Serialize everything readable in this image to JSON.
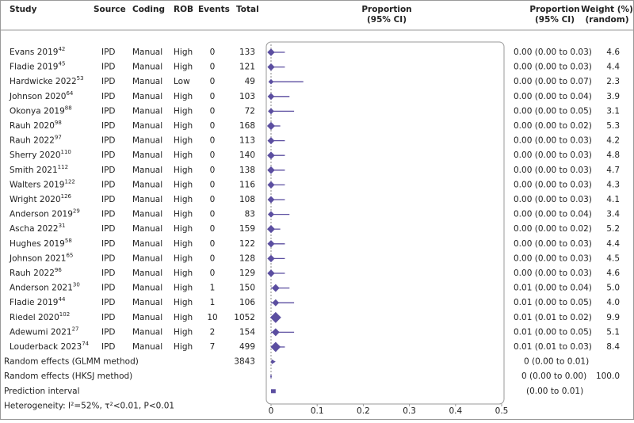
{
  "chart_data": {
    "type": "forest",
    "headers": {
      "study": "Study",
      "source": "Source",
      "coding": "Coding",
      "rob": "ROB",
      "events": "Events",
      "total": "Total",
      "plot": [
        "Proportion",
        "(95% CI)"
      ],
      "ci": [
        "Proportion",
        "(95% CI)"
      ],
      "weight": [
        "Weight (%)",
        "(random)"
      ]
    },
    "color": "#5b4ea0",
    "xlim": [
      0,
      0.5
    ],
    "xticks": [
      0,
      0.1,
      0.2,
      0.3,
      0.4,
      0.5
    ],
    "rows": [
      {
        "name": "Evans 2019",
        "ref": "42",
        "source": "IPD",
        "coding": "Manual",
        "rob": "High",
        "events": 0,
        "total": 133,
        "estimate": 0,
        "lower": 0,
        "upper": 0.03,
        "ci_label": "0.00 (0.00 to 0.03)",
        "weight": {
          "value": 4.6,
          "label": "4.6"
        }
      },
      {
        "name": "Fladie 2019",
        "ref": "45",
        "source": "IPD",
        "coding": "Manual",
        "rob": "High",
        "events": 0,
        "total": 121,
        "estimate": 0,
        "lower": 0,
        "upper": 0.03,
        "ci_label": "0.00 (0.00 to 0.03)",
        "weight": {
          "value": 4.4,
          "label": "4.4"
        }
      },
      {
        "name": "Hardwicke 2022",
        "ref": "53",
        "source": "IPD",
        "coding": "Manual",
        "rob": "Low",
        "events": 0,
        "total": 49,
        "estimate": 0,
        "lower": 0,
        "upper": 0.07,
        "ci_label": "0.00 (0.00 to 0.07)",
        "weight": {
          "value": 2.3,
          "label": "2.3"
        }
      },
      {
        "name": "Johnson 2020",
        "ref": "64",
        "source": "IPD",
        "coding": "Manual",
        "rob": "High",
        "events": 0,
        "total": 103,
        "estimate": 0,
        "lower": 0,
        "upper": 0.04,
        "ci_label": "0.00 (0.00 to 0.04)",
        "weight": {
          "value": 3.9,
          "label": "3.9"
        }
      },
      {
        "name": "Okonya 2019",
        "ref": "88",
        "source": "IPD",
        "coding": "Manual",
        "rob": "High",
        "events": 0,
        "total": 72,
        "estimate": 0,
        "lower": 0,
        "upper": 0.05,
        "ci_label": "0.00 (0.00 to 0.05)",
        "weight": {
          "value": 3.1,
          "label": "3.1"
        }
      },
      {
        "name": "Rauh 2020",
        "ref": "98",
        "source": "IPD",
        "coding": "Manual",
        "rob": "High",
        "events": 0,
        "total": 168,
        "estimate": 0,
        "lower": 0,
        "upper": 0.02,
        "ci_label": "0.00 (0.00 to 0.02)",
        "weight": {
          "value": 5.3,
          "label": "5.3"
        }
      },
      {
        "name": "Rauh 2022",
        "ref": "97",
        "source": "IPD",
        "coding": "Manual",
        "rob": "High",
        "events": 0,
        "total": 113,
        "estimate": 0,
        "lower": 0,
        "upper": 0.03,
        "ci_label": "0.00 (0.00 to 0.03)",
        "weight": {
          "value": 4.2,
          "label": "4.2"
        }
      },
      {
        "name": "Sherry 2020",
        "ref": "110",
        "source": "IPD",
        "coding": "Manual",
        "rob": "High",
        "events": 0,
        "total": 140,
        "estimate": 0,
        "lower": 0,
        "upper": 0.03,
        "ci_label": "0.00 (0.00 to 0.03)",
        "weight": {
          "value": 4.8,
          "label": "4.8"
        }
      },
      {
        "name": "Smith 2021",
        "ref": "112",
        "source": "IPD",
        "coding": "Manual",
        "rob": "High",
        "events": 0,
        "total": 138,
        "estimate": 0,
        "lower": 0,
        "upper": 0.03,
        "ci_label": "0.00 (0.00 to 0.03)",
        "weight": {
          "value": 4.7,
          "label": "4.7"
        }
      },
      {
        "name": "Walters 2019",
        "ref": "122",
        "source": "IPD",
        "coding": "Manual",
        "rob": "High",
        "events": 0,
        "total": 116,
        "estimate": 0,
        "lower": 0,
        "upper": 0.03,
        "ci_label": "0.00 (0.00 to 0.03)",
        "weight": {
          "value": 4.3,
          "label": "4.3"
        }
      },
      {
        "name": "Wright 2020",
        "ref": "126",
        "source": "IPD",
        "coding": "Manual",
        "rob": "High",
        "events": 0,
        "total": 108,
        "estimate": 0,
        "lower": 0,
        "upper": 0.03,
        "ci_label": "0.00 (0.00 to 0.03)",
        "weight": {
          "value": 4.1,
          "label": "4.1"
        }
      },
      {
        "name": "Anderson 2019",
        "ref": "29",
        "source": "IPD",
        "coding": "Manual",
        "rob": "High",
        "events": 0,
        "total": 83,
        "estimate": 0,
        "lower": 0,
        "upper": 0.04,
        "ci_label": "0.00 (0.00 to 0.04)",
        "weight": {
          "value": 3.4,
          "label": "3.4"
        }
      },
      {
        "name": "Ascha 2022",
        "ref": "31",
        "source": "IPD",
        "coding": "Manual",
        "rob": "High",
        "events": 0,
        "total": 159,
        "estimate": 0,
        "lower": 0,
        "upper": 0.02,
        "ci_label": "0.00 (0.00 to 0.02)",
        "weight": {
          "value": 5.2,
          "label": "5.2"
        }
      },
      {
        "name": "Hughes 2019",
        "ref": "58",
        "source": "IPD",
        "coding": "Manual",
        "rob": "High",
        "events": 0,
        "total": 122,
        "estimate": 0,
        "lower": 0,
        "upper": 0.03,
        "ci_label": "0.00 (0.00 to 0.03)",
        "weight": {
          "value": 4.4,
          "label": "4.4"
        }
      },
      {
        "name": "Johnson 2021",
        "ref": "65",
        "source": "IPD",
        "coding": "Manual",
        "rob": "High",
        "events": 0,
        "total": 128,
        "estimate": 0,
        "lower": 0,
        "upper": 0.03,
        "ci_label": "0.00 (0.00 to 0.03)",
        "weight": {
          "value": 4.5,
          "label": "4.5"
        }
      },
      {
        "name": "Rauh 2022",
        "ref": "96",
        "source": "IPD",
        "coding": "Manual",
        "rob": "High",
        "events": 0,
        "total": 129,
        "estimate": 0,
        "lower": 0,
        "upper": 0.03,
        "ci_label": "0.00 (0.00 to 0.03)",
        "weight": {
          "value": 4.6,
          "label": "4.6"
        }
      },
      {
        "name": "Anderson 2021",
        "ref": "30",
        "source": "IPD",
        "coding": "Manual",
        "rob": "High",
        "events": 1,
        "total": 150,
        "estimate": 0.01,
        "lower": 0,
        "upper": 0.04,
        "ci_label": "0.01 (0.00 to 0.04)",
        "weight": {
          "value": 5,
          "label": "5.0"
        }
      },
      {
        "name": "Fladie 2019",
        "ref": "44",
        "source": "IPD",
        "coding": "Manual",
        "rob": "High",
        "events": 1,
        "total": 106,
        "estimate": 0.01,
        "lower": 0,
        "upper": 0.05,
        "ci_label": "0.01 (0.00 to 0.05)",
        "weight": {
          "value": 4,
          "label": "4.0"
        }
      },
      {
        "name": "Riedel 2020",
        "ref": "102",
        "source": "IPD",
        "coding": "Manual",
        "rob": "High",
        "events": 10,
        "total": 1052,
        "estimate": 0.01,
        "lower": 0.01,
        "upper": 0.02,
        "ci_label": "0.01 (0.01 to 0.02)",
        "weight": {
          "value": 9.9,
          "label": "9.9"
        }
      },
      {
        "name": "Adewumi 2021",
        "ref": "27",
        "source": "IPD",
        "coding": "Manual",
        "rob": "High",
        "events": 2,
        "total": 154,
        "estimate": 0.01,
        "lower": 0,
        "upper": 0.05,
        "ci_label": "0.01 (0.00 to 0.05)",
        "weight": {
          "value": 5.1,
          "label": "5.1"
        }
      },
      {
        "name": "Louderback 2023",
        "ref": "74",
        "source": "IPD",
        "coding": "Manual",
        "rob": "High",
        "events": 7,
        "total": 499,
        "estimate": 0.01,
        "lower": 0.01,
        "upper": 0.03,
        "ci_label": "0.01 (0.01 to 0.03)",
        "weight": {
          "value": 8.4,
          "label": "8.4"
        }
      }
    ],
    "glmm": {
      "label": "Random effects (GLMM method)",
      "total": 3843,
      "estimate": 0,
      "lower": 0,
      "upper": 0.01,
      "ci_label": "0 (0.00 to 0.01)"
    },
    "hksj": {
      "label": "Random effects (HKSJ method)",
      "estimate": 0,
      "lower": 0,
      "upper": 0,
      "ci_label": "0 (0.00 to 0.00)",
      "weight": {
        "value": 100,
        "label": "100.0"
      }
    },
    "prediction": {
      "label": "Prediction interval",
      "lower": 0,
      "upper": 0.01,
      "ci_label": "(0.00 to 0.01)"
    },
    "heterogeneity": "Heterogeneity: I²=52%, τ²<0.01, P<0.01"
  }
}
